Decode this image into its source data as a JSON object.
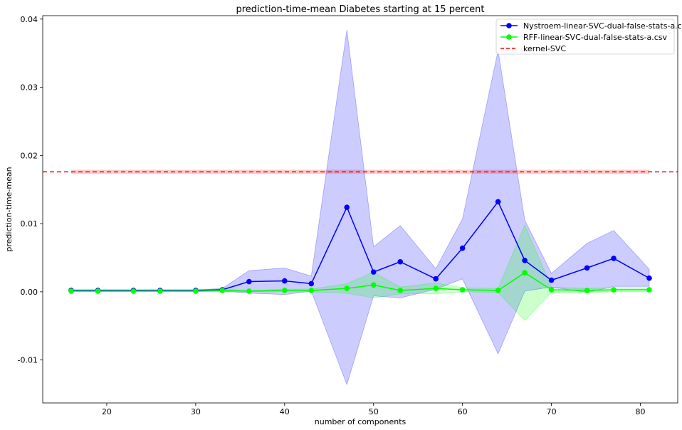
{
  "chart_data": {
    "type": "line",
    "title": "prediction-time-mean Diabetes starting at 15 percent",
    "xlabel": "number of components",
    "ylabel": "prediction-time-mean",
    "xlim": [
      12.8,
      84.2
    ],
    "ylim": [
      -0.0163,
      0.0405
    ],
    "xticks": [
      20,
      30,
      40,
      50,
      60,
      70,
      80
    ],
    "yticks": [
      -0.01,
      0.0,
      0.01,
      0.02,
      0.03,
      0.04
    ],
    "ytick_labels": [
      "-0.01",
      "0.00",
      "0.01",
      "0.02",
      "0.03",
      "0.04"
    ],
    "legend_position": "top-right",
    "x": [
      16,
      19,
      23,
      26,
      30,
      33,
      36,
      40,
      43,
      47,
      50,
      53,
      57,
      60,
      64,
      67,
      70,
      74,
      77,
      81
    ],
    "series": [
      {
        "name": "Nystroem-linear-SVC-dual-false-stats-a.csv",
        "color": "#0000ff",
        "band_color": "rgba(0,0,255,0.2)",
        "values": [
          0.0002,
          0.0002,
          0.0002,
          0.0002,
          0.0002,
          0.0003,
          0.0015,
          0.0016,
          0.0012,
          0.0124,
          0.0029,
          0.0044,
          0.0019,
          0.0064,
          0.0132,
          0.0046,
          0.0017,
          0.0035,
          0.0049,
          0.002
        ],
        "lower": [
          0.0001,
          0.0001,
          0.0001,
          0.0001,
          0.0001,
          0.0001,
          -0.0002,
          -0.0004,
          0.0001,
          -0.0136,
          -0.0006,
          -0.0009,
          0.0004,
          0.0019,
          -0.0091,
          0.0001,
          0.0007,
          -0.0001,
          0.0008,
          0.0008
        ],
        "upper": [
          0.0003,
          0.0003,
          0.0003,
          0.0003,
          0.0003,
          0.0005,
          0.0031,
          0.0035,
          0.0023,
          0.0384,
          0.0066,
          0.0097,
          0.0034,
          0.0107,
          0.0354,
          0.0105,
          0.0027,
          0.0071,
          0.009,
          0.0033
        ]
      },
      {
        "name": "RFF-linear-SVC-dual-false-stats-a.csv",
        "color": "#00ff00",
        "band_color": "rgba(0,255,0,0.2)",
        "values": [
          0.0001,
          0.0001,
          0.0001,
          0.0001,
          0.0001,
          0.0002,
          0.0001,
          0.0002,
          0.0002,
          0.0005,
          0.001,
          0.0002,
          0.0005,
          0.0003,
          0.0002,
          0.0028,
          0.0003,
          0.0002,
          0.0003,
          0.0003
        ],
        "lower": [
          0.0,
          0.0,
          0.0,
          0.0,
          0.0,
          0.0,
          0.0,
          0.0,
          0.0,
          -0.0002,
          -0.0009,
          -0.0003,
          -0.0003,
          0.0,
          -0.0001,
          -0.0042,
          -0.0001,
          -0.0001,
          0.0,
          0.0
        ],
        "upper": [
          0.0002,
          0.0002,
          0.0002,
          0.0002,
          0.0002,
          0.0004,
          0.0002,
          0.0004,
          0.0004,
          0.0012,
          0.0029,
          0.0007,
          0.0013,
          0.0006,
          0.0005,
          0.0098,
          0.0007,
          0.0005,
          0.0006,
          0.0006
        ]
      },
      {
        "name": "kernel-SVC",
        "color": "#ff0000",
        "style": "dashed",
        "constant": 0.0176,
        "band": [
          0.0173,
          0.0179
        ],
        "band_color": "rgba(255,0,0,0.2)"
      }
    ]
  }
}
